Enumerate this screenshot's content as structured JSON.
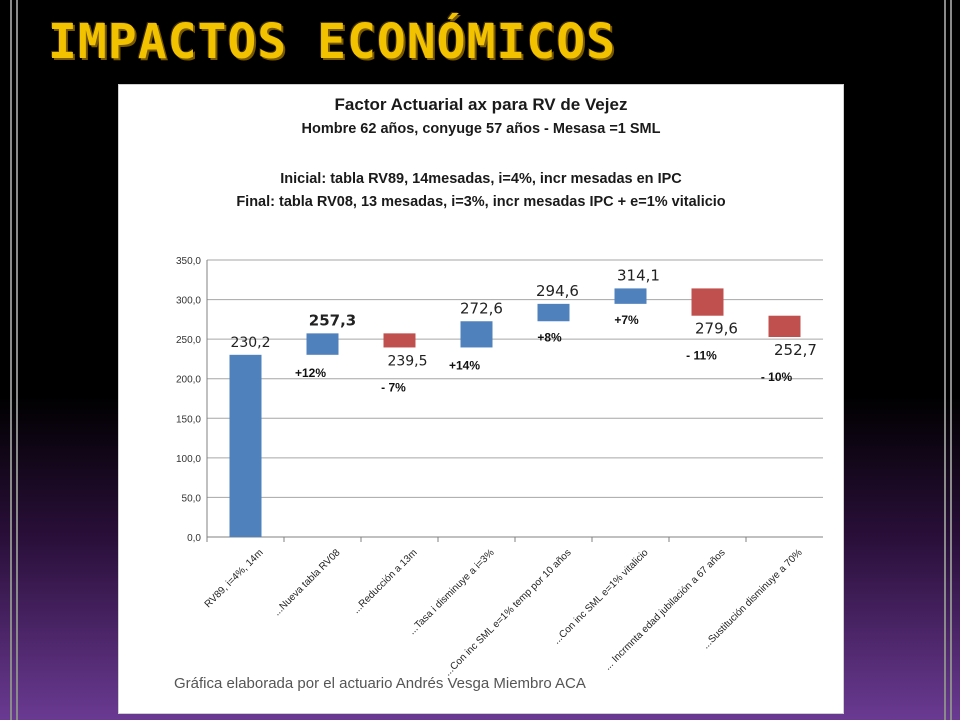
{
  "slide": {
    "title": "IMPACTOS ECONÓMICOS"
  },
  "colors": {
    "title": "#f2c200",
    "increase": "#4f81bd",
    "decrease": "#c0504d",
    "base": "#4f81bd"
  },
  "chart_data": {
    "type": "bar",
    "title": "Factor Actuarial ax para RV de Vejez",
    "subtitle": "Hombre 62 años, conyuge 57 años - Mesasa =1 SML",
    "subtitle2": "Inicial: tabla RV89, 14mesadas, i=4%, incr mesadas en IPC",
    "subtitle3": "Final: tabla RV08, 13 mesadas, i=3%, incr mesadas IPC + e=1% vitalicio",
    "categories": [
      "RV89, i=4%, 14m",
      "...Nueva tabla RV08",
      "...Reducción a 13m",
      "...Tasa i disminuye a i=3%",
      "...Con inc SML e=1% temp por 10 años",
      "...Con inc SML e=1% vitalicio",
      "... Incrmnta edad jubilación a 67 años",
      "...Sustitución disminuye a 70%"
    ],
    "series": [
      {
        "values": [
          230.2,
          257.3,
          239.5,
          272.6,
          294.6,
          314.1,
          279.6,
          252.7
        ]
      }
    ],
    "value_labels": [
      "230,2",
      "257,3",
      "239,5",
      "272,6",
      "294,6",
      "314,1",
      "279,6",
      "252,7"
    ],
    "pct_labels": [
      "",
      "+12%",
      "- 7%",
      "+14%",
      "+8%",
      "+7%",
      "- 11%",
      "- 10%"
    ],
    "yticks": [
      "0,0",
      "50,0",
      "100,0",
      "150,0",
      "200,0",
      "250,0",
      "300,0",
      "350,0"
    ],
    "ylim": [
      0,
      350
    ],
    "grid": true
  },
  "footer": {
    "credit": "Gráfica elaborada por el actuario Andrés Vesga Miembro ACA"
  }
}
